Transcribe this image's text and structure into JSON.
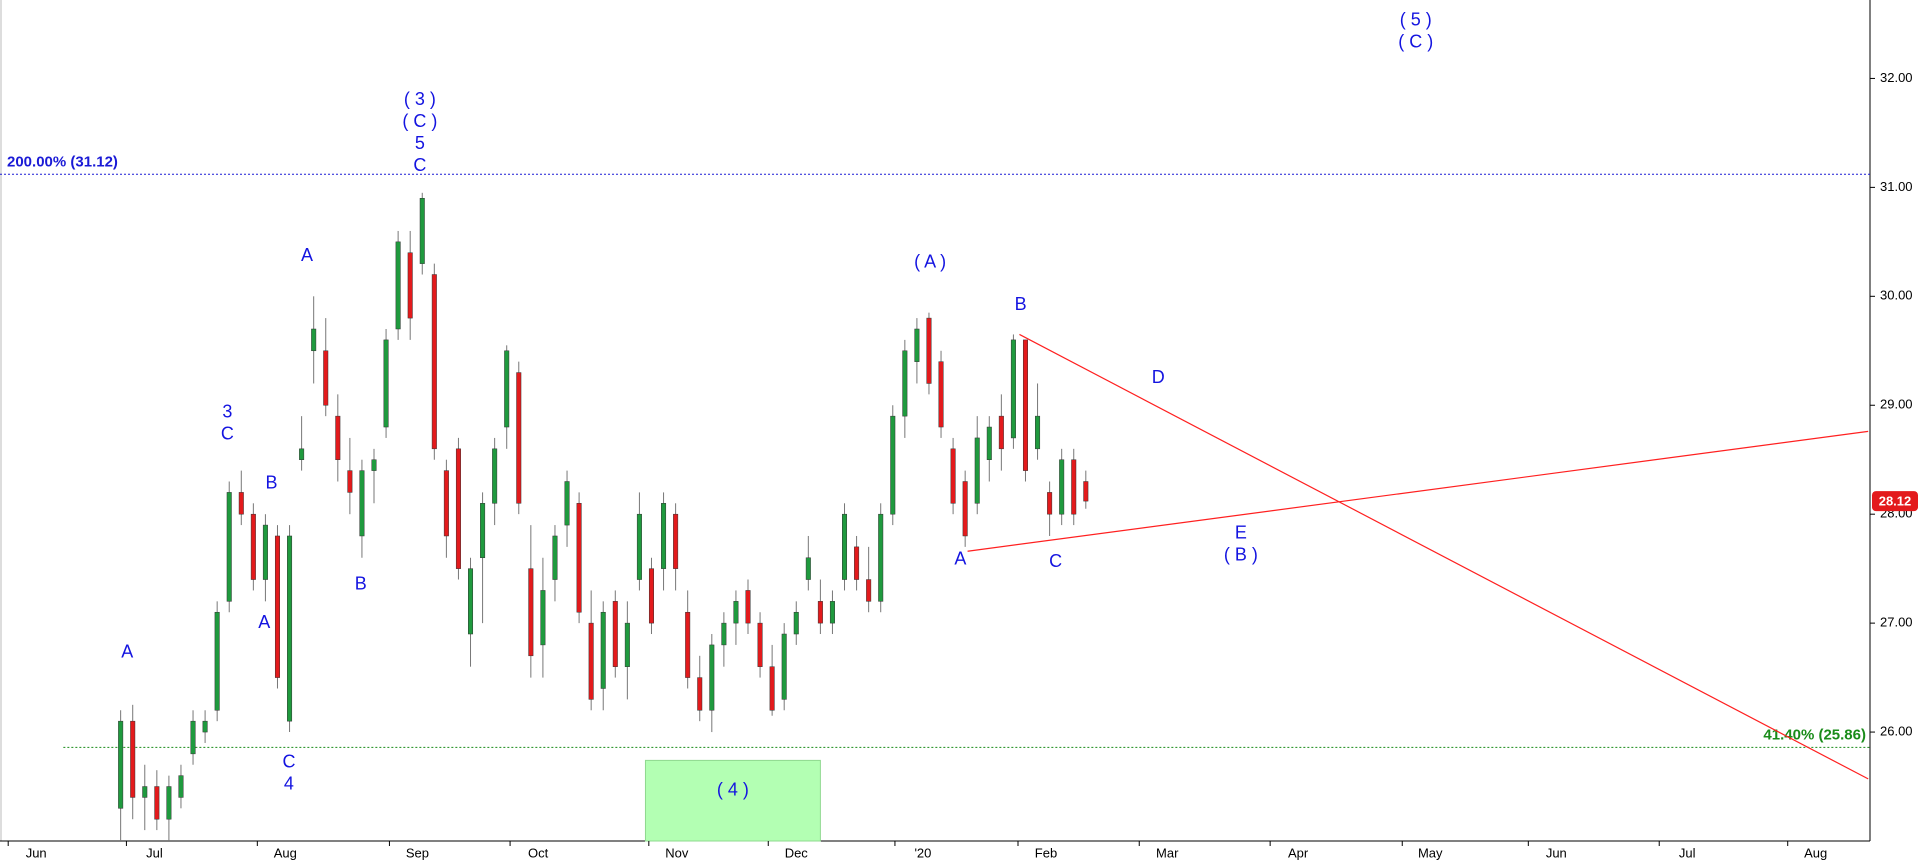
{
  "chart_data": {
    "type": "candlestick",
    "up_color": "#1f9a3e",
    "down_color": "#e31a1c",
    "x": [
      20,
      22,
      24,
      26,
      28,
      30,
      32,
      34,
      36,
      38,
      40,
      42,
      44,
      46,
      48,
      50,
      52,
      54,
      56,
      58,
      60,
      62,
      64,
      66,
      68,
      70,
      72,
      74,
      76,
      78,
      80,
      82,
      84,
      86,
      88,
      90,
      92,
      94,
      96,
      98,
      100,
      102,
      104,
      106,
      108,
      110,
      112,
      114,
      116,
      118,
      120,
      122,
      124,
      126,
      128,
      130,
      132,
      134,
      136,
      138,
      140,
      142,
      144,
      146,
      148,
      150,
      152,
      154,
      156,
      158,
      160,
      162,
      164,
      166,
      168,
      170,
      172,
      174,
      176,
      178,
      180
    ],
    "open": [
      25.3,
      26.1,
      25.4,
      25.5,
      25.2,
      25.4,
      25.8,
      26.0,
      26.2,
      27.2,
      28.2,
      28.0,
      27.4,
      27.8,
      26.1,
      28.5,
      29.5,
      29.5,
      28.9,
      28.4,
      27.8,
      28.4,
      28.8,
      29.7,
      30.4,
      30.3,
      30.2,
      28.4,
      28.6,
      26.9,
      27.6,
      28.1,
      28.8,
      29.3,
      27.5,
      26.8,
      27.4,
      27.9,
      28.1,
      27.0,
      26.4,
      27.2,
      26.6,
      27.4,
      27.5,
      27.5,
      28.0,
      27.1,
      26.5,
      26.2,
      26.8,
      27.0,
      27.3,
      27.0,
      26.6,
      26.3,
      26.9,
      27.4,
      27.2,
      27.0,
      27.4,
      27.7,
      27.4,
      27.2,
      28.0,
      28.9,
      29.4,
      29.8,
      29.4,
      28.6,
      28.3,
      28.1,
      28.5,
      28.9,
      28.7,
      29.6,
      28.6,
      28.2,
      28.0,
      28.5,
      28.3
    ],
    "high": [
      26.2,
      26.25,
      25.7,
      25.65,
      25.6,
      25.7,
      26.2,
      26.2,
      27.2,
      28.3,
      28.4,
      28.1,
      28.0,
      27.9,
      27.9,
      28.9,
      30.0,
      29.8,
      29.1,
      28.7,
      28.5,
      28.6,
      29.7,
      30.6,
      30.6,
      30.95,
      30.3,
      28.5,
      28.7,
      27.6,
      28.2,
      28.7,
      29.55,
      29.4,
      27.9,
      27.6,
      27.9,
      28.4,
      28.2,
      27.3,
      27.2,
      27.3,
      27.2,
      28.2,
      27.6,
      28.2,
      28.1,
      27.3,
      26.7,
      26.9,
      27.1,
      27.3,
      27.4,
      27.1,
      26.8,
      27.0,
      27.2,
      27.8,
      27.4,
      27.3,
      28.1,
      27.8,
      27.7,
      28.1,
      29.0,
      29.6,
      29.8,
      29.85,
      29.5,
      28.7,
      28.4,
      28.9,
      28.9,
      29.1,
      29.65,
      29.6,
      29.2,
      28.3,
      28.6,
      28.6,
      28.4
    ],
    "low": [
      25.0,
      25.2,
      25.1,
      25.1,
      25.0,
      25.3,
      25.7,
      25.9,
      26.1,
      27.1,
      27.9,
      27.3,
      27.2,
      26.4,
      26.0,
      28.4,
      29.2,
      28.9,
      28.3,
      28.0,
      27.6,
      28.1,
      28.7,
      29.6,
      29.6,
      30.2,
      28.5,
      27.6,
      27.4,
      26.6,
      27.0,
      27.9,
      28.6,
      28.0,
      26.5,
      26.5,
      27.2,
      27.7,
      27.0,
      26.2,
      26.2,
      26.5,
      26.3,
      27.3,
      26.9,
      27.3,
      27.3,
      26.4,
      26.1,
      26.0,
      26.6,
      26.8,
      26.9,
      26.5,
      26.15,
      26.2,
      26.8,
      27.3,
      26.9,
      26.9,
      27.3,
      27.3,
      27.1,
      27.1,
      27.9,
      28.7,
      29.2,
      29.1,
      28.7,
      28.0,
      27.7,
      28.0,
      28.3,
      28.4,
      28.6,
      28.3,
      28.5,
      27.8,
      27.9,
      27.9,
      28.05
    ],
    "close": [
      26.1,
      25.4,
      25.5,
      25.2,
      25.5,
      25.6,
      26.1,
      26.1,
      27.1,
      28.2,
      28.0,
      27.4,
      27.9,
      26.5,
      27.8,
      28.6,
      29.7,
      29.0,
      28.5,
      28.2,
      28.4,
      28.5,
      29.6,
      30.5,
      29.8,
      30.9,
      28.6,
      27.8,
      27.5,
      27.5,
      28.1,
      28.6,
      29.5,
      28.1,
      26.7,
      27.3,
      27.8,
      28.3,
      27.1,
      26.3,
      27.1,
      26.6,
      27.0,
      28.0,
      27.0,
      28.1,
      27.5,
      26.5,
      26.2,
      26.8,
      27.0,
      27.2,
      27.0,
      26.6,
      26.2,
      26.9,
      27.1,
      27.6,
      27.0,
      27.2,
      28.0,
      27.4,
      27.2,
      28.0,
      28.9,
      29.5,
      29.7,
      29.2,
      28.8,
      28.1,
      27.8,
      28.7,
      28.8,
      28.6,
      29.6,
      28.4,
      28.9,
      28.0,
      28.5,
      28.0,
      28.12
    ],
    "xlim": [
      0,
      310
    ],
    "ylim": [
      25,
      32.72
    ],
    "yticks": [
      {
        "value": 26,
        "label": "26.00"
      },
      {
        "value": 27,
        "label": "27.00"
      },
      {
        "value": 28,
        "label": "28.00"
      },
      {
        "value": 29,
        "label": "29.00"
      },
      {
        "value": 30,
        "label": "30.00"
      },
      {
        "value": 31,
        "label": "31.00"
      },
      {
        "value": 32,
        "label": "32.00"
      }
    ],
    "xticks": [
      {
        "value": 6,
        "label": "Jun"
      },
      {
        "value": 25.6,
        "label": "Jul"
      },
      {
        "value": 47.3,
        "label": "Aug"
      },
      {
        "value": 69.2,
        "label": "Sep"
      },
      {
        "value": 89.2,
        "label": "Oct"
      },
      {
        "value": 112.2,
        "label": "Nov"
      },
      {
        "value": 132,
        "label": "Dec"
      },
      {
        "value": 153,
        "label": "'20"
      },
      {
        "value": 173.4,
        "label": "Feb"
      },
      {
        "value": 193.5,
        "label": "Mar"
      },
      {
        "value": 215.2,
        "label": "Apr"
      },
      {
        "value": 237.1,
        "label": "May"
      },
      {
        "value": 258,
        "label": "Jun"
      },
      {
        "value": 279.7,
        "label": "Jul"
      },
      {
        "value": 301,
        "label": "Aug"
      }
    ],
    "last": 28.12,
    "last_color": "#e31a1c",
    "levels": [
      {
        "label": "200.00% (31.12)",
        "value": 31.12,
        "color": "#1a1ad6"
      },
      {
        "label": "41.40% (25.86)",
        "value": 25.86,
        "color": "#1a8c1a"
      }
    ],
    "trendlines": [
      {
        "x": [
          169,
          309.7
        ],
        "y": [
          29.65,
          25.57
        ]
      },
      {
        "x": [
          160.4,
          309.7
        ],
        "y": [
          27.66,
          28.76
        ]
      }
    ],
    "trend_color": "#ff2020",
    "zone": {
      "label": "( 4 )",
      "x": [
        107,
        136
      ],
      "y": [
        25,
        25.74
      ],
      "color": "#b3ffb3"
    },
    "annotation_color": "#1414e0",
    "annotations": [
      [
        "A"
      ],
      [
        "3",
        "C"
      ],
      [
        "B"
      ],
      [
        "A"
      ],
      [
        "C",
        "4"
      ],
      [
        "A"
      ],
      [
        "B"
      ],
      [
        "( 3 )",
        "( C )",
        "5",
        "C"
      ],
      [
        "( A )"
      ],
      [
        "B"
      ],
      [
        "D"
      ],
      [
        "A"
      ],
      [
        "C"
      ],
      [
        "E",
        "( B )"
      ],
      [
        "( 5 )",
        "( C )"
      ]
    ]
  }
}
